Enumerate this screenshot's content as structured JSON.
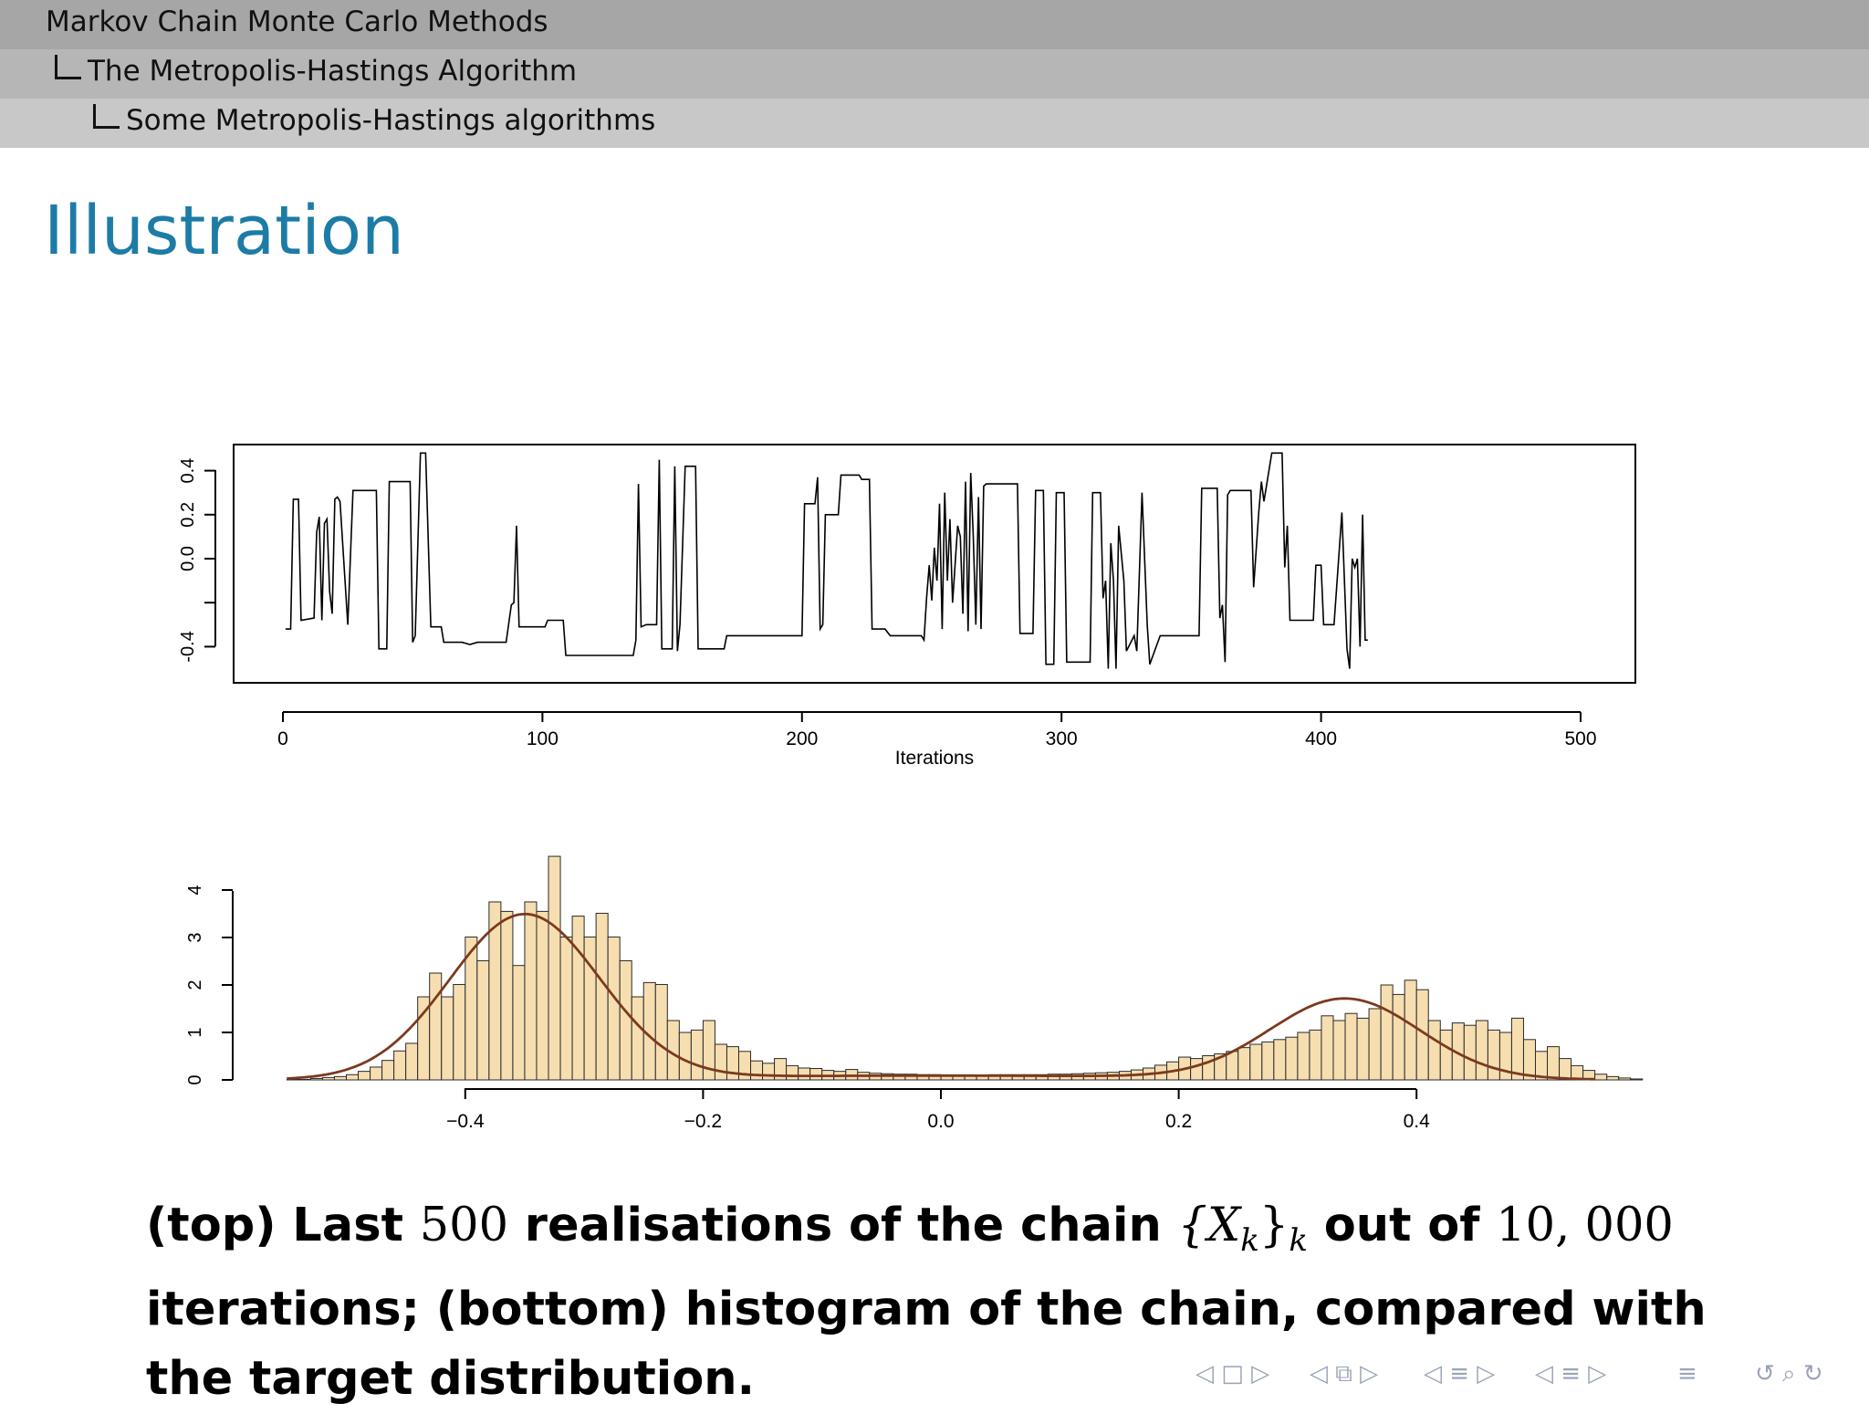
{
  "header": {
    "section": "Markov Chain Monte Carlo Methods",
    "subsection": "The Metropolis-Hastings Algorithm",
    "subsubsection": "Some Metropolis-Hastings algorithms"
  },
  "slide_title": "Illustration",
  "chart_data": [
    {
      "type": "line",
      "title": "",
      "xlabel": "Iterations",
      "ylabel": "",
      "xlim": [
        0,
        500
      ],
      "ylim": [
        -0.55,
        0.52
      ],
      "x_ticks": [
        "0",
        "100",
        "200",
        "300",
        "400",
        "500"
      ],
      "y_ticks": [
        "-0.4",
        "0.0",
        "0.2",
        "0.4"
      ],
      "grid": false,
      "points": [
        [
          1,
          -0.32
        ],
        [
          3,
          -0.32
        ],
        [
          4,
          0.27
        ],
        [
          6,
          0.27
        ],
        [
          7,
          -0.28
        ],
        [
          12,
          -0.27
        ],
        [
          13,
          0.12
        ],
        [
          14,
          0.19
        ],
        [
          15,
          -0.28
        ],
        [
          16,
          0.16
        ],
        [
          17,
          0.18
        ],
        [
          18,
          -0.15
        ],
        [
          19,
          -0.25
        ],
        [
          20,
          0.27
        ],
        [
          21,
          0.28
        ],
        [
          22,
          0.26
        ],
        [
          25,
          -0.3
        ],
        [
          27,
          0.31
        ],
        [
          36,
          0.31
        ],
        [
          37,
          -0.41
        ],
        [
          40,
          -0.41
        ],
        [
          41,
          0.35
        ],
        [
          49,
          0.35
        ],
        [
          50,
          -0.38
        ],
        [
          51,
          -0.35
        ],
        [
          53,
          0.48
        ],
        [
          55,
          0.48
        ],
        [
          57,
          -0.31
        ],
        [
          61,
          -0.31
        ],
        [
          62,
          -0.38
        ],
        [
          69,
          -0.38
        ],
        [
          72,
          -0.39
        ],
        [
          75,
          -0.38
        ],
        [
          86,
          -0.38
        ],
        [
          88,
          -0.21
        ],
        [
          89,
          -0.2
        ],
        [
          90,
          0.15
        ],
        [
          91,
          -0.31
        ],
        [
          101,
          -0.31
        ],
        [
          102,
          -0.28
        ],
        [
          108,
          -0.28
        ],
        [
          109,
          -0.44
        ],
        [
          135,
          -0.44
        ],
        [
          136,
          -0.37
        ],
        [
          137,
          0.34
        ],
        [
          138,
          -0.31
        ],
        [
          140,
          -0.3
        ],
        [
          144,
          -0.3
        ],
        [
          145,
          0.45
        ],
        [
          146,
          -0.41
        ],
        [
          150,
          -0.41
        ],
        [
          151,
          0.42
        ],
        [
          152,
          -0.42
        ],
        [
          153,
          -0.3
        ],
        [
          155,
          0.42
        ],
        [
          159,
          0.42
        ],
        [
          160,
          -0.41
        ],
        [
          170,
          -0.41
        ],
        [
          171,
          -0.35
        ],
        [
          200,
          -0.35
        ],
        [
          201,
          0.25
        ],
        [
          205,
          0.25
        ],
        [
          206,
          0.37
        ],
        [
          207,
          -0.32
        ],
        [
          208,
          -0.3
        ],
        [
          209,
          0.2
        ],
        [
          214,
          0.2
        ],
        [
          215,
          0.38
        ],
        [
          222,
          0.38
        ],
        [
          223,
          0.36
        ],
        [
          226,
          0.36
        ],
        [
          227,
          -0.32
        ],
        [
          232,
          -0.32
        ],
        [
          234,
          -0.35
        ],
        [
          246,
          -0.35
        ],
        [
          247,
          -0.37
        ],
        [
          248,
          -0.18
        ],
        [
          249,
          -0.03
        ],
        [
          250,
          -0.19
        ],
        [
          251,
          0.05
        ],
        [
          252,
          -0.1
        ],
        [
          253,
          0.25
        ],
        [
          254,
          -0.32
        ],
        [
          255,
          0.3
        ],
        [
          256,
          -0.1
        ],
        [
          257,
          0.18
        ],
        [
          258,
          -0.2
        ],
        [
          260,
          0.15
        ],
        [
          261,
          0.1
        ],
        [
          262,
          -0.25
        ],
        [
          263,
          0.35
        ],
        [
          264,
          -0.33
        ],
        [
          265,
          0.39
        ],
        [
          266,
          0.1
        ],
        [
          267,
          -0.3
        ],
        [
          268,
          0.28
        ],
        [
          269,
          -0.32
        ],
        [
          270,
          0.33
        ],
        [
          271,
          0.34
        ],
        [
          283,
          0.34
        ],
        [
          284,
          -0.34
        ],
        [
          289,
          -0.34
        ],
        [
          290,
          0.31
        ],
        [
          293,
          0.31
        ],
        [
          294,
          -0.48
        ],
        [
          297,
          -0.48
        ],
        [
          298,
          0.3
        ],
        [
          301,
          0.3
        ],
        [
          302,
          -0.47
        ],
        [
          311,
          -0.47
        ],
        [
          312,
          0.3
        ],
        [
          315,
          0.3
        ],
        [
          316,
          -0.18
        ],
        [
          317,
          -0.1
        ],
        [
          318,
          -0.5
        ],
        [
          319,
          0.07
        ],
        [
          320,
          -0.1
        ],
        [
          321,
          -0.5
        ],
        [
          322,
          0.15
        ],
        [
          324,
          -0.1
        ],
        [
          325,
          -0.42
        ],
        [
          328,
          -0.35
        ],
        [
          329,
          -0.42
        ],
        [
          331,
          0.3
        ],
        [
          333,
          -0.3
        ],
        [
          334,
          -0.48
        ],
        [
          338,
          -0.35
        ],
        [
          353,
          -0.35
        ],
        [
          354,
          0.32
        ],
        [
          360,
          0.32
        ],
        [
          361,
          -0.27
        ],
        [
          362,
          -0.21
        ],
        [
          363,
          -0.47
        ],
        [
          364,
          0.29
        ],
        [
          365,
          0.31
        ],
        [
          373,
          0.31
        ],
        [
          374,
          -0.13
        ],
        [
          376,
          0.21
        ],
        [
          377,
          0.35
        ],
        [
          378,
          0.26
        ],
        [
          381,
          0.48
        ],
        [
          385,
          0.48
        ],
        [
          386,
          -0.04
        ],
        [
          387,
          0.15
        ],
        [
          388,
          -0.28
        ],
        [
          397,
          -0.28
        ],
        [
          398,
          -0.03
        ],
        [
          400,
          -0.03
        ],
        [
          401,
          -0.3
        ],
        [
          405,
          -0.3
        ],
        [
          408,
          0.21
        ],
        [
          410,
          -0.41
        ],
        [
          411,
          -0.5
        ],
        [
          412,
          0.0
        ],
        [
          413,
          -0.04
        ],
        [
          414,
          0.0
        ],
        [
          415,
          -0.4
        ],
        [
          416,
          0.2
        ],
        [
          417,
          -0.37
        ],
        [
          418,
          -0.37
        ]
      ]
    },
    {
      "type": "bar",
      "title": "",
      "xlabel": "",
      "ylabel": "",
      "xlim": [
        -0.55,
        0.55
      ],
      "ylim": [
        0,
        4.7
      ],
      "x_ticks": [
        "−0.4",
        "−0.2",
        "0.0",
        "0.2",
        "0.4"
      ],
      "y_ticks": [
        "0",
        "1",
        "2",
        "3",
        "4"
      ],
      "bin_start": -0.55,
      "bin_width": 0.01,
      "values": [
        0.01,
        0.01,
        0.03,
        0.05,
        0.07,
        0.11,
        0.18,
        0.27,
        0.41,
        0.61,
        0.77,
        1.75,
        2.25,
        1.75,
        2.01,
        3.01,
        2.51,
        3.75,
        3.55,
        2.41,
        3.75,
        3.55,
        4.71,
        3.01,
        3.45,
        3.01,
        3.51,
        3.01,
        2.51,
        1.75,
        2.05,
        2.01,
        1.25,
        1.0,
        1.05,
        1.25,
        0.75,
        0.7,
        0.6,
        0.4,
        0.35,
        0.45,
        0.3,
        0.25,
        0.24,
        0.2,
        0.18,
        0.22,
        0.16,
        0.14,
        0.13,
        0.12,
        0.12,
        0.11,
        0.11,
        0.1,
        0.1,
        0.1,
        0.1,
        0.11,
        0.11,
        0.11,
        0.11,
        0.11,
        0.12,
        0.12,
        0.13,
        0.14,
        0.15,
        0.16,
        0.18,
        0.21,
        0.25,
        0.31,
        0.38,
        0.48,
        0.45,
        0.51,
        0.55,
        0.6,
        0.68,
        0.75,
        0.8,
        0.85,
        0.9,
        1.0,
        1.05,
        1.35,
        1.25,
        1.4,
        1.3,
        1.5,
        2.0,
        1.8,
        2.1,
        1.9,
        1.25,
        1.05,
        1.2,
        1.15,
        1.25,
        1.05,
        1.0,
        1.3,
        0.85,
        0.6,
        0.7,
        0.45,
        0.3,
        0.2,
        0.12,
        0.07,
        0.04,
        0.02
      ],
      "series": [
        {
          "type": "density-curve",
          "modes": [
            -0.35,
            0.34
          ],
          "sd": [
            0.063,
            0.063
          ],
          "peak_heights": [
            3.46,
            1.68
          ]
        }
      ],
      "colors": {
        "bars": "#f6deb0",
        "bar_edge": "#2a2a2a",
        "curve": "#7b3a1e"
      }
    }
  ],
  "caption": {
    "p1": "(top) Last ",
    "m1": "500",
    "p2": " realisations of the chain ",
    "m2": "{X",
    "m2sub": "k",
    "m2end": "}",
    "m2sub2": "k",
    "p3": " out of ",
    "m3": "10, 000",
    "p4": " iterations; (bottom) histogram of the chain, compared with the target distribution."
  },
  "nav": {
    "frame": "◁ □ ▷",
    "subsection": "◁ ⧉ ▷",
    "section": "◁ ≡ ▷",
    "subsection_alt": "◁ ≡ ▷",
    "list": "≡",
    "search": "↺ ⌕ ↻"
  }
}
